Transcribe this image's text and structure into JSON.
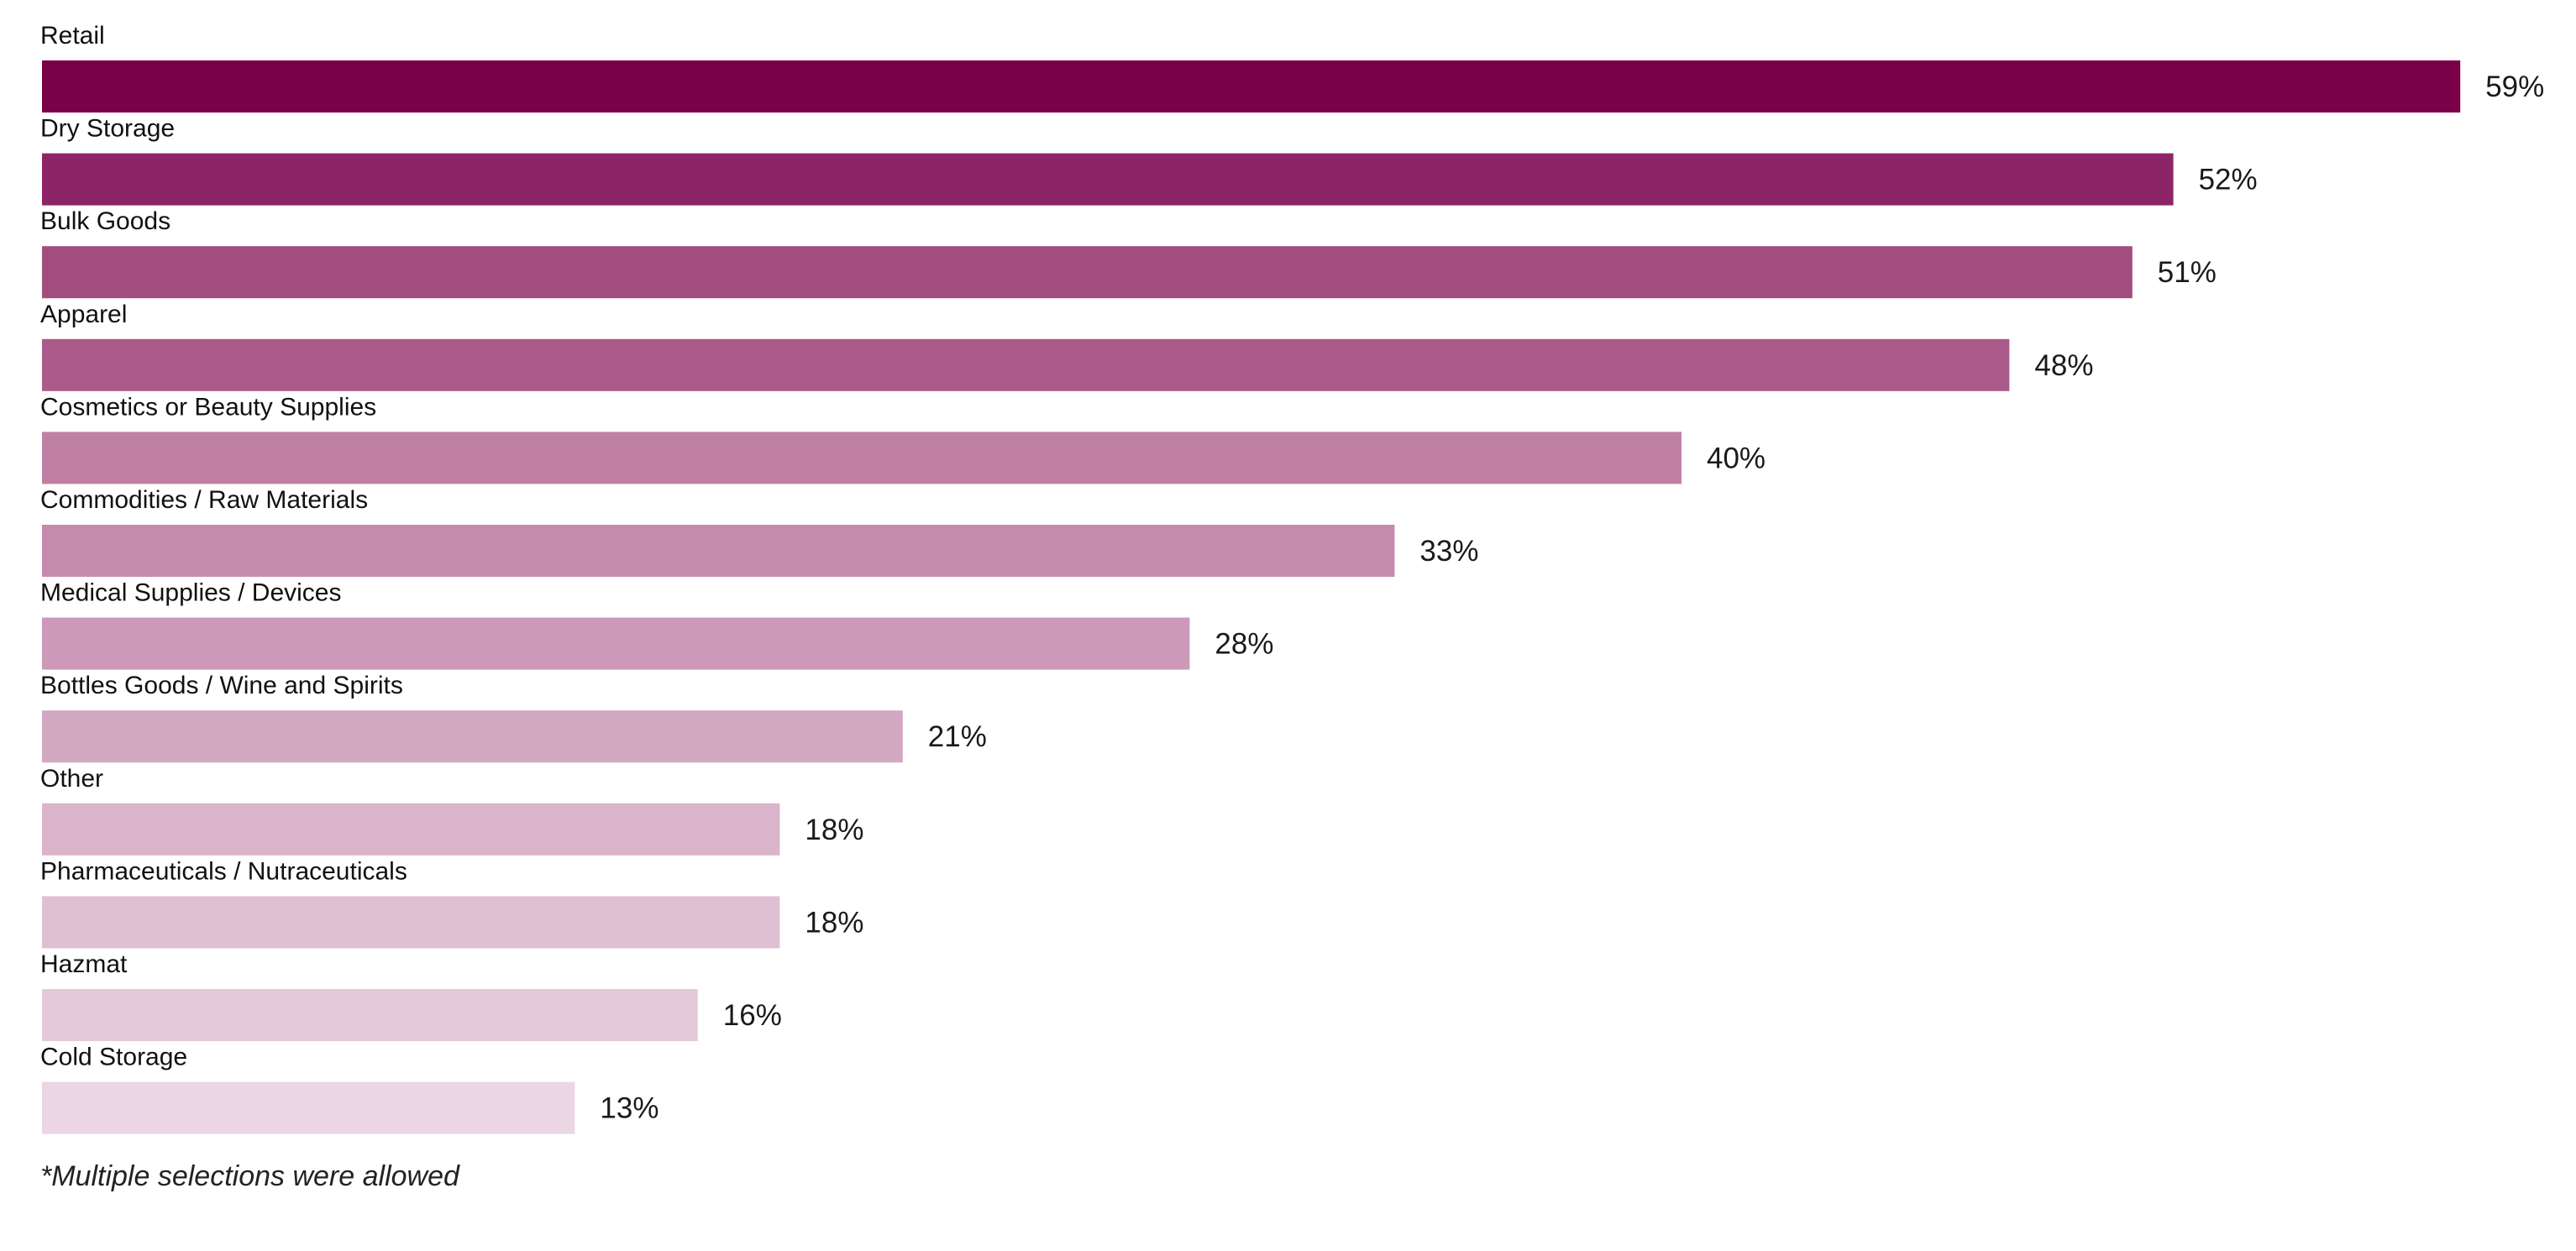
{
  "chart_data": {
    "type": "bar",
    "orientation": "horizontal",
    "categories": [
      "Retail",
      "Dry Storage",
      "Bulk Goods",
      "Apparel",
      "Cosmetics or Beauty Supplies",
      "Commodities / Raw Materials",
      "Medical Supplies / Devices",
      "Bottles Goods / Wine and Spirits",
      "Other",
      "Pharmaceuticals / Nutraceuticals",
      "Hazmat",
      "Cold Storage"
    ],
    "values": [
      59,
      52,
      51,
      48,
      40,
      33,
      28,
      21,
      18,
      18,
      16,
      13
    ],
    "value_labels": [
      "59%",
      "52%",
      "51%",
      "48%",
      "40%",
      "33%",
      "28%",
      "21%",
      "18%",
      "18%",
      "16%",
      "13%"
    ],
    "unit": "%",
    "colors": [
      "#7a0047",
      "#8e2468",
      "#a14d7e",
      "#ab5b89",
      "#c080a4",
      "#c58bad",
      "#cc99b8",
      "#d3a8c3",
      "#d9b4cb",
      "#dfc0d3",
      "#e4cad9",
      "#ead7e3"
    ],
    "grid": false,
    "legend": "none"
  },
  "footnote": "*Multiple selections were allowed"
}
